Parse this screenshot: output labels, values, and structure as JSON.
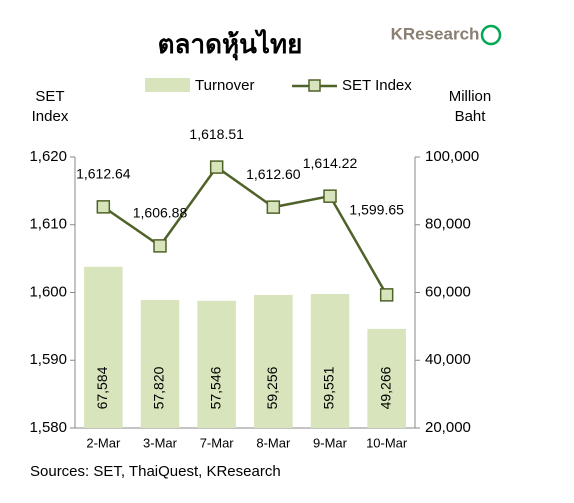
{
  "chart_data": {
    "type": "bar-line",
    "title": "ตลาดหุ้นไทย",
    "logo": "KResearch",
    "y_label": [
      "SET",
      "Index"
    ],
    "y2_label": [
      "Million",
      "Baht"
    ],
    "source": "Sources: SET, ThaiQuest, KResearch",
    "categories": [
      "2-Mar",
      "3-Mar",
      "7-Mar",
      "8-Mar",
      "9-Mar",
      "10-Mar"
    ],
    "series": [
      {
        "name": "Turnover",
        "type": "bar",
        "axis": "y2",
        "color": "#d7e4bc",
        "values": [
          67584,
          57820,
          57546,
          59256,
          59551,
          49266
        ],
        "value_labels": [
          "67,584",
          "57,820",
          "57,546",
          "59,256",
          "59,551",
          "49,266"
        ]
      },
      {
        "name": "SET Index",
        "type": "line",
        "color": "#4f6228",
        "marker_color": "#d7e4bc",
        "values": [
          1612.64,
          1606.88,
          1618.51,
          1612.6,
          1614.22,
          1599.65
        ],
        "value_labels": [
          "1,612.64",
          "1,606.88",
          "1,618.51",
          "1,612.60",
          "1,614.22",
          "1,599.65"
        ]
      }
    ],
    "ylim": [
      1580,
      1620
    ],
    "yticks": [
      {
        "value": 1580,
        "label": "1,580"
      },
      {
        "value": 1590,
        "label": "1,590"
      },
      {
        "value": 1600,
        "label": "1,600"
      },
      {
        "value": 1610,
        "label": "1,610"
      },
      {
        "value": 1620,
        "label": "1,620"
      }
    ],
    "y2lim": [
      20000,
      100000
    ],
    "y2ticks": [
      {
        "value": 20000,
        "label": "20,000"
      },
      {
        "value": 40000,
        "label": "40,000"
      },
      {
        "value": 60000,
        "label": "60,000"
      },
      {
        "value": 80000,
        "label": "80,000"
      },
      {
        "value": 100000,
        "label": "100,000"
      }
    ]
  }
}
